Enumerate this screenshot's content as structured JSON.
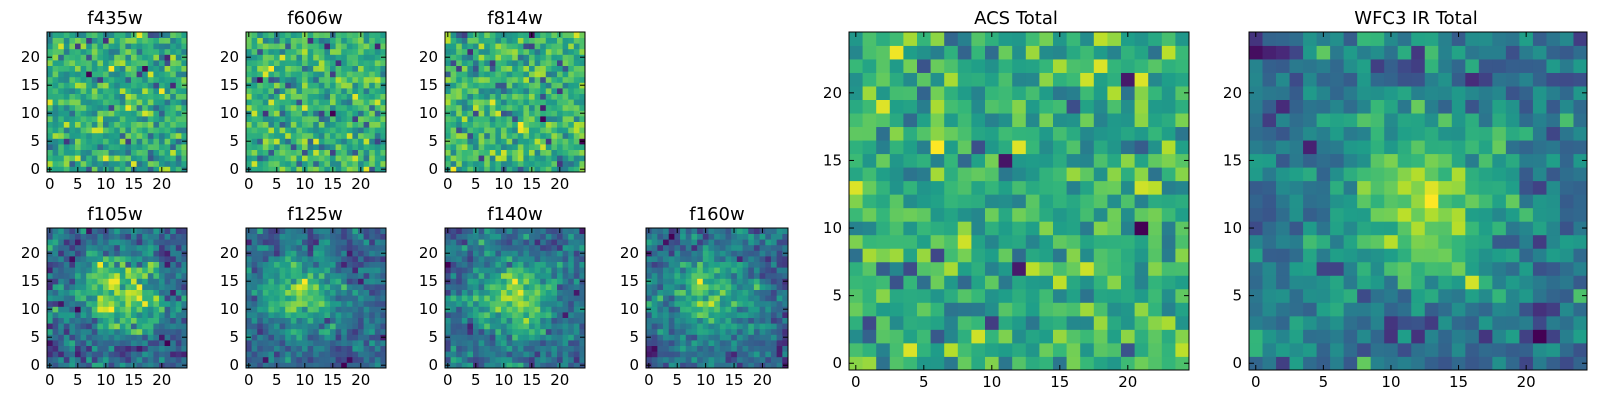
{
  "figure_title": "",
  "chart_data": [
    {
      "type": "heatmap",
      "title": "f435w",
      "grid_size": 25,
      "colormap": "viridis",
      "xticks": [
        "0",
        "5",
        "10",
        "15",
        "20"
      ],
      "yticks": [
        "0",
        "5",
        "10",
        "15",
        "20"
      ],
      "xlim": [
        0,
        25
      ],
      "ylim": [
        0,
        25
      ],
      "pattern": "noise",
      "seed": 11
    },
    {
      "type": "heatmap",
      "title": "f606w",
      "grid_size": 25,
      "colormap": "viridis",
      "xticks": [
        "0",
        "5",
        "10",
        "15",
        "20"
      ],
      "yticks": [
        "0",
        "5",
        "10",
        "15",
        "20"
      ],
      "xlim": [
        0,
        25
      ],
      "ylim": [
        0,
        25
      ],
      "pattern": "noise",
      "seed": 23
    },
    {
      "type": "heatmap",
      "title": "f814w",
      "grid_size": 25,
      "colormap": "viridis",
      "xticks": [
        "0",
        "5",
        "10",
        "15",
        "20"
      ],
      "yticks": [
        "0",
        "5",
        "10",
        "15",
        "20"
      ],
      "xlim": [
        0,
        25
      ],
      "ylim": [
        0,
        25
      ],
      "pattern": "noise",
      "seed": 37
    },
    {
      "type": "heatmap",
      "title": "f105w",
      "grid_size": 25,
      "colormap": "viridis",
      "xticks": [
        "0",
        "5",
        "10",
        "15",
        "20"
      ],
      "yticks": [
        "0",
        "5",
        "10",
        "15",
        "20"
      ],
      "xlim": [
        0,
        25
      ],
      "ylim": [
        0,
        25
      ],
      "pattern": "blob",
      "center": [
        13,
        13
      ],
      "seed": 41
    },
    {
      "type": "heatmap",
      "title": "f125w",
      "grid_size": 25,
      "colormap": "viridis",
      "xticks": [
        "0",
        "5",
        "10",
        "15",
        "20"
      ],
      "yticks": [
        "0",
        "5",
        "10",
        "15",
        "20"
      ],
      "xlim": [
        0,
        25
      ],
      "ylim": [
        0,
        25
      ],
      "pattern": "blob",
      "center": [
        9,
        13
      ],
      "seed": 53
    },
    {
      "type": "heatmap",
      "title": "f140w",
      "grid_size": 25,
      "colormap": "viridis",
      "xticks": [
        "0",
        "5",
        "10",
        "15",
        "20"
      ],
      "yticks": [
        "0",
        "5",
        "10",
        "15",
        "20"
      ],
      "xlim": [
        0,
        25
      ],
      "ylim": [
        0,
        25
      ],
      "pattern": "blob",
      "center": [
        12,
        12
      ],
      "seed": 67
    },
    {
      "type": "heatmap",
      "title": "f160w",
      "grid_size": 25,
      "colormap": "viridis",
      "xticks": [
        "0",
        "5",
        "10",
        "15",
        "20"
      ],
      "yticks": [
        "0",
        "5",
        "10",
        "15",
        "20"
      ],
      "xlim": [
        0,
        25
      ],
      "ylim": [
        0,
        25
      ],
      "pattern": "blob",
      "center": [
        10,
        12
      ],
      "seed": 79
    },
    {
      "type": "heatmap",
      "title": "ACS Total",
      "grid_size": 25,
      "colormap": "viridis",
      "xticks": [
        "0",
        "5",
        "10",
        "15",
        "20"
      ],
      "yticks": [
        "0",
        "5",
        "10",
        "15",
        "20"
      ],
      "xlim": [
        0,
        25
      ],
      "ylim": [
        0,
        25
      ],
      "pattern": "noise",
      "seed": 97
    },
    {
      "type": "heatmap",
      "title": "WFC3 IR Total",
      "grid_size": 25,
      "colormap": "viridis",
      "xticks": [
        "0",
        "5",
        "10",
        "15",
        "20"
      ],
      "yticks": [
        "0",
        "5",
        "10",
        "15",
        "20"
      ],
      "xlim": [
        0,
        25
      ],
      "ylim": [
        0,
        25
      ],
      "pattern": "blob",
      "center": [
        12,
        12
      ],
      "seed": 103
    }
  ]
}
